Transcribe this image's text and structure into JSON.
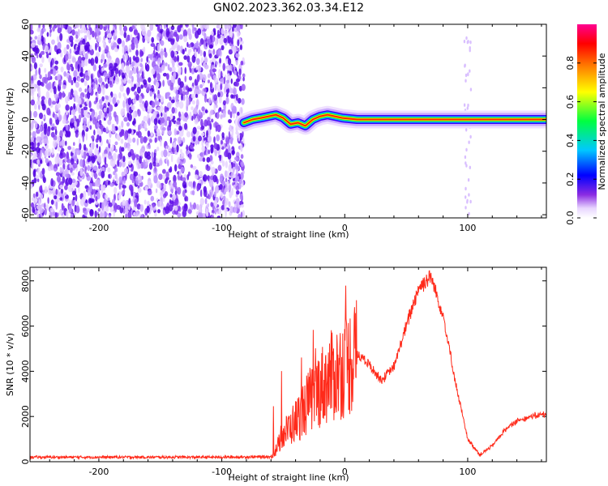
{
  "title": "GN02.2023.362.03.34.E12",
  "chart_data": [
    {
      "type": "heatmap",
      "xlabel": "Height of straight line (km)",
      "ylabel": "Frequency (Hz)",
      "xlim": [
        -256,
        164
      ],
      "ylim": [
        -62,
        60
      ],
      "xticks": [
        -200,
        -100,
        0,
        100
      ],
      "yticks": [
        -60,
        -40,
        -20,
        0,
        20,
        40,
        60
      ],
      "noise_region_x": [
        -256,
        -82
      ],
      "signal_ridge": {
        "x": [
          -82,
          -75,
          -68,
          -62,
          -56,
          -50,
          -44,
          -38,
          -32,
          -26,
          -20,
          -14,
          -8,
          -2,
          10,
          30,
          50,
          70,
          90,
          110,
          130,
          150,
          164
        ],
        "y": [
          -2,
          0,
          1,
          2,
          3,
          1,
          -3,
          -2,
          -4,
          0,
          2,
          3,
          2,
          1,
          0,
          0,
          0,
          0,
          0,
          0,
          0,
          0,
          0
        ]
      },
      "colorbar": {
        "label": "Normalized spectral amplitude",
        "range": [
          0,
          1
        ],
        "ticks": [
          "0.0",
          "0.2",
          "0.4",
          "0.6",
          "0.8"
        ]
      }
    },
    {
      "type": "line",
      "xlabel": "Height of straight line (km)",
      "ylabel": "SNR (10 * v/v)",
      "xlim": [
        -256,
        164
      ],
      "ylim": [
        0,
        8600
      ],
      "xticks": [
        -200,
        -100,
        0,
        100
      ],
      "yticks": [
        0,
        2000,
        4000,
        6000,
        8000
      ],
      "series": [
        {
          "color": "#ff2a1a",
          "x": [
            -256,
            -200,
            -150,
            -100,
            -60,
            -57,
            -50,
            -40,
            -30,
            -20,
            -10,
            0,
            10,
            20,
            30,
            40,
            50,
            60,
            70,
            80,
            90,
            100,
            110,
            120,
            130,
            140,
            150,
            164
          ],
          "y": [
            200,
            200,
            200,
            200,
            220,
            400,
            1200,
            1800,
            2600,
            3300,
            3800,
            4200,
            4800,
            4300,
            3600,
            4200,
            6000,
            7700,
            8200,
            6500,
            3500,
            1000,
            300,
            700,
            1400,
            1800,
            2000,
            2100
          ]
        }
      ]
    }
  ]
}
